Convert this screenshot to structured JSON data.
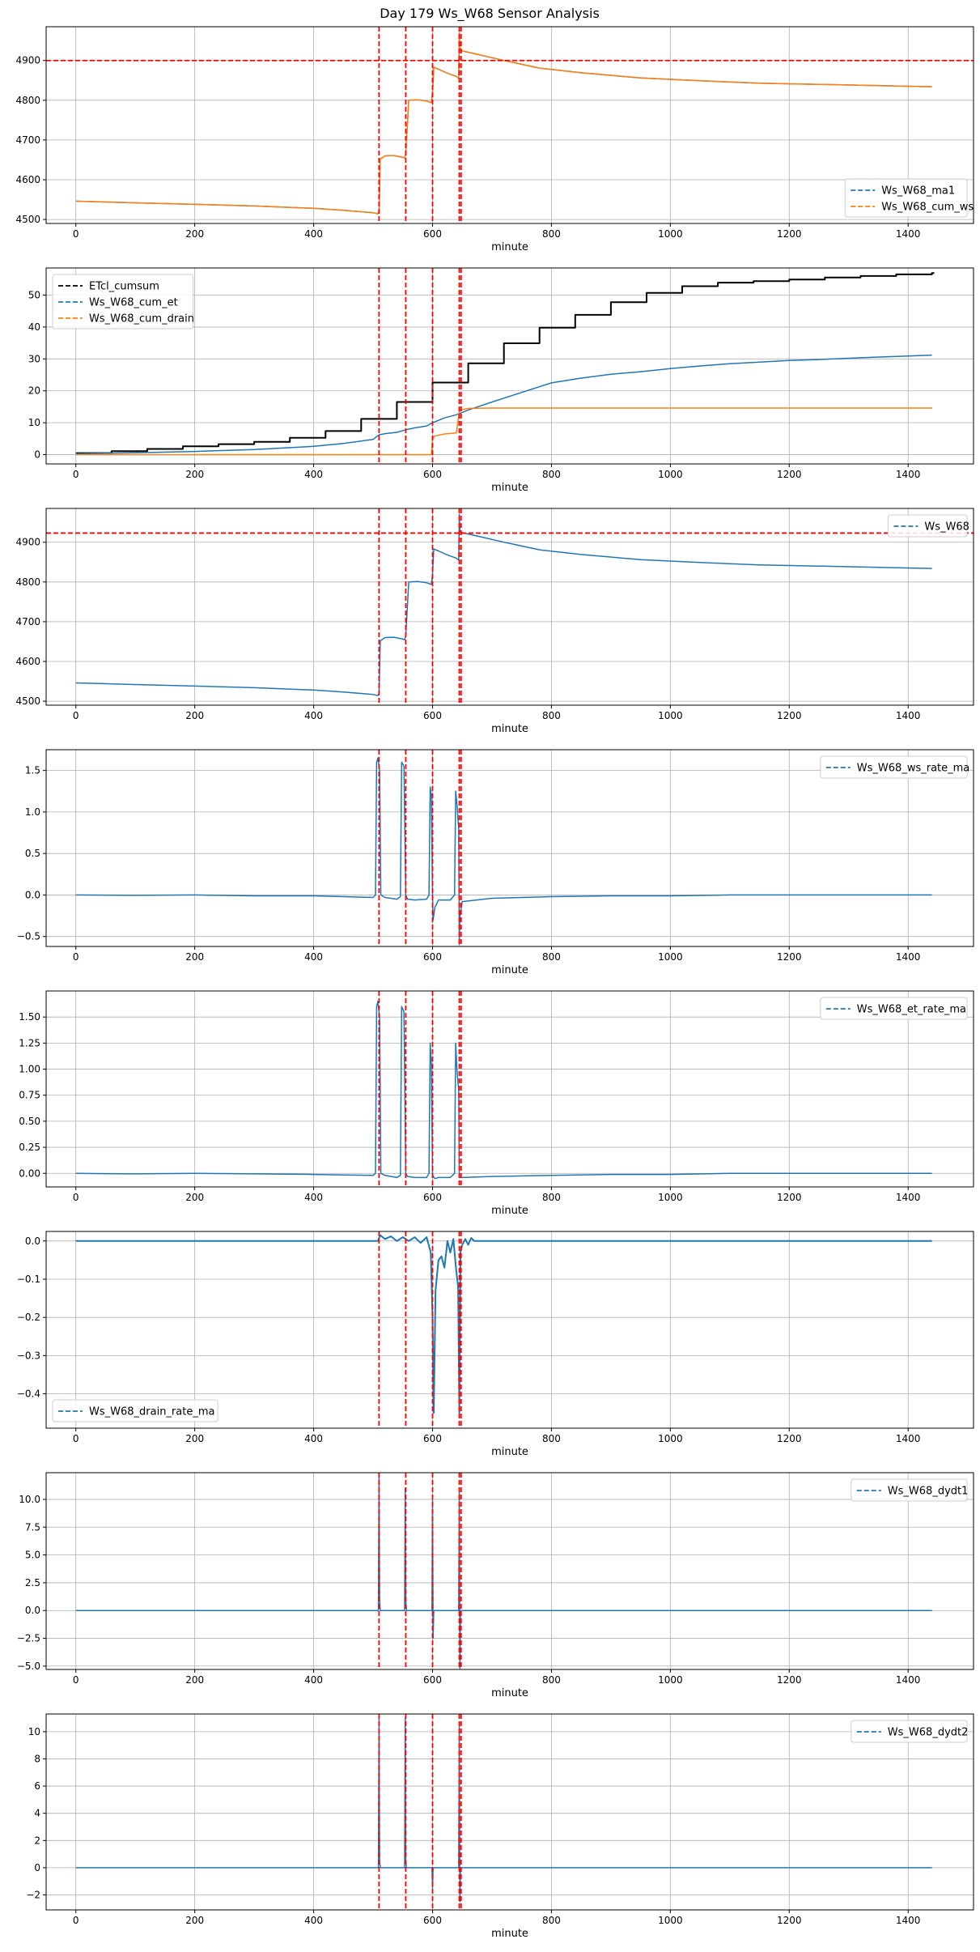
{
  "figure": {
    "title": "Day 179 Ws_W68 Sensor Analysis"
  },
  "colors": {
    "blue": "#1f77b4",
    "orange": "#ff7f0e",
    "black": "#000000",
    "red": "#ff0000",
    "grid": "#b0b0b0"
  },
  "chart_data": [
    {
      "type": "line",
      "xlabel": "minute",
      "xlim": [
        -50,
        1510
      ],
      "ylim": [
        4490,
        4985
      ],
      "xticks": [
        0,
        200,
        400,
        600,
        800,
        1000,
        1200,
        1400
      ],
      "yticks": [
        4500,
        4600,
        4700,
        4800,
        4900
      ],
      "hlines": [
        4900
      ],
      "vlines": [
        510,
        555,
        600,
        645,
        648
      ],
      "legend": "bottom-right",
      "grid": true,
      "series": [
        {
          "name": "Ws_W68_ma1",
          "color": "#1f77b4",
          "width": 1.5,
          "x": [
            0,
            100,
            200,
            300,
            400,
            450,
            500,
            508,
            510,
            512,
            520,
            535,
            548,
            553,
            555,
            560,
            575,
            590,
            598,
            600,
            602,
            610,
            625,
            640,
            644,
            645,
            646,
            650,
            680,
            720,
            780,
            850,
            950,
            1050,
            1150,
            1250,
            1350,
            1440
          ],
          "y": [
            4546,
            4542,
            4538,
            4534,
            4528,
            4523,
            4517,
            4514,
            4520,
            4652,
            4660,
            4661,
            4657,
            4655,
            4665,
            4800,
            4801,
            4798,
            4794,
            4820,
            4883,
            4878,
            4868,
            4860,
            4855,
            4970,
            4928,
            4924,
            4914,
            4900,
            4881,
            4869,
            4856,
            4849,
            4843,
            4840,
            4837,
            4834
          ]
        },
        {
          "name": "Ws_W68_cum_ws",
          "color": "#ff7f0e",
          "width": 1.5,
          "x": [
            0,
            100,
            200,
            300,
            400,
            450,
            500,
            508,
            510,
            512,
            520,
            535,
            548,
            553,
            555,
            560,
            575,
            590,
            598,
            600,
            602,
            610,
            625,
            640,
            644,
            645,
            646,
            650,
            680,
            720,
            780,
            850,
            950,
            1050,
            1150,
            1250,
            1350,
            1440
          ],
          "y": [
            4546,
            4542,
            4538,
            4534,
            4528,
            4523,
            4517,
            4514,
            4520,
            4652,
            4660,
            4661,
            4657,
            4655,
            4665,
            4800,
            4801,
            4798,
            4794,
            4820,
            4883,
            4878,
            4868,
            4860,
            4855,
            4970,
            4928,
            4924,
            4914,
            4900,
            4881,
            4869,
            4856,
            4849,
            4843,
            4840,
            4837,
            4834
          ]
        }
      ]
    },
    {
      "type": "line",
      "xlabel": "minute",
      "xlim": [
        -50,
        1510
      ],
      "ylim": [
        -2.9,
        58.5
      ],
      "xticks": [
        0,
        200,
        400,
        600,
        800,
        1000,
        1200,
        1400
      ],
      "yticks": [
        0,
        10,
        20,
        30,
        40,
        50
      ],
      "hlines": [],
      "vlines": [
        510,
        555,
        600,
        645,
        648
      ],
      "legend": "top-left",
      "grid": true,
      "series": [
        {
          "name": "ETcl_cumsum",
          "color": "#000000",
          "width": 2,
          "step": true,
          "x": [
            0,
            60,
            120,
            180,
            240,
            300,
            360,
            420,
            480,
            540,
            600,
            660,
            720,
            780,
            840,
            900,
            960,
            1020,
            1080,
            1140,
            1200,
            1260,
            1320,
            1380,
            1440
          ],
          "y": [
            0.5,
            1.1,
            1.8,
            2.6,
            3.3,
            4.0,
            5.3,
            7.4,
            11.2,
            16.5,
            22.6,
            28.6,
            34.9,
            39.8,
            43.8,
            47.8,
            50.7,
            52.8,
            53.9,
            54.4,
            54.9,
            55.5,
            56.0,
            56.5,
            56.9
          ]
        },
        {
          "name": "Ws_W68_cum_et",
          "color": "#1f77b4",
          "width": 1.5,
          "x": [
            0,
            100,
            200,
            300,
            400,
            450,
            500,
            510,
            520,
            540,
            555,
            570,
            590,
            600,
            620,
            640,
            660,
            700,
            750,
            800,
            850,
            900,
            950,
            1000,
            1050,
            1100,
            1150,
            1200,
            1250,
            1300,
            1350,
            1400,
            1440
          ],
          "y": [
            0.3,
            0.6,
            1.0,
            1.6,
            2.6,
            3.5,
            4.8,
            6.2,
            6.6,
            7.0,
            7.8,
            8.4,
            9.0,
            10.0,
            11.5,
            12.5,
            14.0,
            16.5,
            19.5,
            22.5,
            24.0,
            25.2,
            26.0,
            27.0,
            27.8,
            28.5,
            29.0,
            29.5,
            29.8,
            30.2,
            30.6,
            30.9,
            31.2
          ]
        },
        {
          "name": "Ws_W68_cum_drain",
          "color": "#ff7f0e",
          "width": 1.5,
          "x": [
            0,
            500,
            598,
            600,
            603,
            620,
            640,
            645,
            648,
            660,
            700,
            1440
          ],
          "y": [
            0,
            0,
            0,
            5.0,
            5.8,
            6.5,
            6.8,
            13.5,
            14.0,
            14.5,
            14.6,
            14.6
          ]
        }
      ]
    },
    {
      "type": "line",
      "xlabel": "minute",
      "xlim": [
        -50,
        1510
      ],
      "ylim": [
        4490,
        4985
      ],
      "xticks": [
        0,
        200,
        400,
        600,
        800,
        1000,
        1200,
        1400
      ],
      "yticks": [
        4500,
        4600,
        4700,
        4800,
        4900
      ],
      "hlines": [
        4923
      ],
      "vlines": [
        510,
        555,
        600,
        645,
        648
      ],
      "legend": "top-right",
      "grid": true,
      "series": [
        {
          "name": "Ws_W68",
          "color": "#1f77b4",
          "width": 1.5,
          "x": [
            0,
            100,
            200,
            300,
            400,
            450,
            500,
            508,
            510,
            512,
            520,
            535,
            548,
            553,
            555,
            560,
            575,
            590,
            598,
            600,
            602,
            610,
            625,
            640,
            644,
            645,
            646,
            650,
            680,
            720,
            780,
            850,
            950,
            1050,
            1150,
            1250,
            1350,
            1440
          ],
          "y": [
            4546,
            4542,
            4538,
            4534,
            4528,
            4523,
            4517,
            4514,
            4520,
            4652,
            4660,
            4661,
            4657,
            4655,
            4665,
            4800,
            4801,
            4798,
            4794,
            4820,
            4883,
            4878,
            4868,
            4860,
            4855,
            4970,
            4928,
            4924,
            4914,
            4900,
            4881,
            4869,
            4856,
            4849,
            4843,
            4840,
            4837,
            4834
          ]
        }
      ]
    },
    {
      "type": "line",
      "xlabel": "minute",
      "xlim": [
        -50,
        1510
      ],
      "ylim": [
        -0.62,
        1.75
      ],
      "xticks": [
        0,
        200,
        400,
        600,
        800,
        1000,
        1200,
        1400
      ],
      "yticks": [
        -0.5,
        0.0,
        0.5,
        1.0,
        1.5
      ],
      "hlines": [],
      "vlines": [
        510,
        555,
        600,
        645,
        648
      ],
      "legend": "top-right",
      "grid": true,
      "series": [
        {
          "name": "Ws_W68_ws_rate_ma",
          "color": "#1f77b4",
          "width": 1.5,
          "x": [
            0,
            100,
            200,
            300,
            400,
            450,
            500,
            504,
            506,
            508,
            511,
            513,
            520,
            540,
            546,
            548,
            552,
            555,
            558,
            570,
            590,
            594,
            596,
            598,
            600,
            601,
            604,
            610,
            630,
            637,
            639,
            641,
            644,
            645,
            646,
            650,
            700,
            800,
            900,
            1000,
            1100,
            1200,
            1300,
            1400,
            1440
          ],
          "y": [
            0.0,
            -0.005,
            0.0,
            -0.01,
            -0.01,
            -0.02,
            -0.03,
            0.0,
            1.6,
            1.65,
            1.5,
            0.0,
            -0.03,
            -0.05,
            -0.02,
            1.6,
            1.55,
            0.0,
            -0.05,
            -0.06,
            -0.05,
            0.0,
            1.3,
            1.2,
            0.0,
            -0.3,
            -0.15,
            -0.06,
            -0.06,
            0.0,
            1.25,
            1.1,
            0.8,
            -0.6,
            -0.25,
            -0.08,
            -0.04,
            -0.02,
            -0.01,
            -0.01,
            0.0,
            0.0,
            0.0,
            0.0,
            0.0
          ]
        }
      ]
    },
    {
      "type": "line",
      "xlabel": "minute",
      "xlim": [
        -50,
        1510
      ],
      "ylim": [
        -0.13,
        1.75
      ],
      "xticks": [
        0,
        200,
        400,
        600,
        800,
        1000,
        1200,
        1400
      ],
      "yticks": [
        0.0,
        0.25,
        0.5,
        0.75,
        1.0,
        1.25,
        1.5
      ],
      "hlines": [],
      "vlines": [
        510,
        555,
        600,
        645,
        648
      ],
      "legend": "top-right",
      "grid": true,
      "series": [
        {
          "name": "Ws_W68_et_rate_ma",
          "color": "#1f77b4",
          "width": 1.5,
          "x": [
            0,
            100,
            200,
            300,
            400,
            450,
            500,
            504,
            506,
            508,
            511,
            513,
            520,
            540,
            546,
            548,
            552,
            555,
            558,
            570,
            590,
            594,
            596,
            598,
            600,
            601,
            604,
            610,
            630,
            637,
            639,
            641,
            644,
            645,
            646,
            650,
            700,
            800,
            900,
            1000,
            1100,
            1200,
            1300,
            1400,
            1440
          ],
          "y": [
            0.0,
            -0.005,
            0.0,
            -0.005,
            -0.01,
            -0.015,
            -0.02,
            0.0,
            1.6,
            1.65,
            1.5,
            0.0,
            -0.02,
            -0.04,
            -0.02,
            1.6,
            1.55,
            0.0,
            -0.03,
            -0.04,
            -0.04,
            0.0,
            1.25,
            1.05,
            0.0,
            -0.03,
            -0.05,
            -0.04,
            -0.04,
            0.0,
            1.25,
            1.0,
            0.8,
            -0.02,
            -0.04,
            -0.04,
            -0.03,
            -0.02,
            -0.01,
            -0.01,
            0.0,
            0.0,
            0.0,
            0.0,
            0.0
          ]
        }
      ]
    },
    {
      "type": "line",
      "xlabel": "minute",
      "xlim": [
        -50,
        1510
      ],
      "ylim": [
        -0.49,
        0.025
      ],
      "xticks": [
        0,
        200,
        400,
        600,
        800,
        1000,
        1200,
        1400
      ],
      "yticks": [
        0.0,
        -0.1,
        -0.2,
        -0.3,
        -0.4
      ],
      "hlines": [],
      "vlines": [
        510,
        555,
        600,
        645,
        648
      ],
      "legend": "bottom-left",
      "grid": true,
      "series": [
        {
          "name": "Ws_W68_drain_rate_ma",
          "color": "#1f77b4",
          "width": 2,
          "x": [
            0,
            508,
            512,
            520,
            530,
            540,
            550,
            560,
            570,
            580,
            590,
            597,
            600,
            602,
            605,
            610,
            615,
            620,
            625,
            630,
            635,
            640,
            643,
            645,
            647,
            650,
            655,
            660,
            665,
            670,
            680,
            1440
          ],
          "y": [
            0,
            0,
            0.015,
            0.005,
            0.012,
            0.0,
            0.01,
            0.0,
            0.01,
            -0.005,
            0.01,
            -0.03,
            -0.2,
            -0.45,
            -0.13,
            -0.05,
            -0.04,
            -0.07,
            0.0,
            -0.03,
            0.005,
            -0.08,
            -0.12,
            -0.45,
            -0.03,
            -0.01,
            0.005,
            -0.01,
            0.008,
            0.0,
            0.0,
            0.0
          ]
        }
      ]
    },
    {
      "type": "line",
      "xlabel": "minute",
      "xlim": [
        -50,
        1510
      ],
      "ylim": [
        -5.3,
        12.4
      ],
      "xticks": [
        0,
        200,
        400,
        600,
        800,
        1000,
        1200,
        1400
      ],
      "yticks": [
        -5.0,
        -2.5,
        0.0,
        2.5,
        5.0,
        7.5,
        10.0
      ],
      "hlines": [],
      "vlines": [
        510,
        555,
        600,
        645,
        648
      ],
      "legend": "top-right",
      "grid": true,
      "series": [
        {
          "name": "Ws_W68_dydt1",
          "color": "#1f77b4",
          "width": 1.5,
          "x": [
            0,
            100,
            200,
            300,
            400,
            500,
            509,
            510,
            511,
            512,
            553,
            554,
            555,
            556,
            599,
            600,
            601,
            602,
            644,
            645,
            646,
            647,
            700,
            800,
            900,
            1000,
            1100,
            1200,
            1300,
            1400,
            1440
          ],
          "y": [
            0.0,
            0.0,
            0.0,
            0.0,
            0.0,
            0.0,
            0.0,
            12.0,
            1.0,
            0.0,
            0.0,
            11.0,
            1.0,
            0.0,
            0.0,
            10.0,
            -2.5,
            0.0,
            0.0,
            11.0,
            -5.2,
            0.0,
            0.0,
            0.0,
            0.0,
            0.0,
            0.0,
            0.0,
            0.0,
            0.0,
            0.0
          ]
        }
      ]
    },
    {
      "type": "line",
      "xlabel": "minute",
      "xlim": [
        -50,
        1510
      ],
      "ylim": [
        -3.1,
        11.3
      ],
      "xticks": [
        0,
        200,
        400,
        600,
        800,
        1000,
        1200,
        1400
      ],
      "yticks": [
        -2,
        0,
        2,
        4,
        6,
        8,
        10
      ],
      "hlines": [],
      "vlines": [
        510,
        555,
        600,
        645,
        648
      ],
      "legend": "top-right",
      "grid": true,
      "series": [
        {
          "name": "Ws_W68_dydt2",
          "color": "#1f77b4",
          "width": 1.5,
          "x": [
            0,
            100,
            200,
            300,
            400,
            500,
            509,
            510,
            511,
            512,
            553,
            554,
            555,
            556,
            599,
            600,
            601,
            602,
            644,
            645,
            646,
            647,
            700,
            800,
            900,
            1000,
            1100,
            1200,
            1300,
            1400,
            1440
          ],
          "y": [
            0.0,
            0.0,
            0.0,
            0.0,
            0.0,
            0.0,
            0.0,
            11.0,
            0.5,
            0.0,
            0.0,
            11.0,
            0.5,
            0.0,
            0.0,
            -1.5,
            0.0,
            0.0,
            0.0,
            10.5,
            -2.5,
            0.0,
            0.0,
            0.0,
            0.0,
            0.0,
            0.0,
            0.0,
            0.0,
            0.0,
            0.0
          ]
        }
      ]
    }
  ]
}
